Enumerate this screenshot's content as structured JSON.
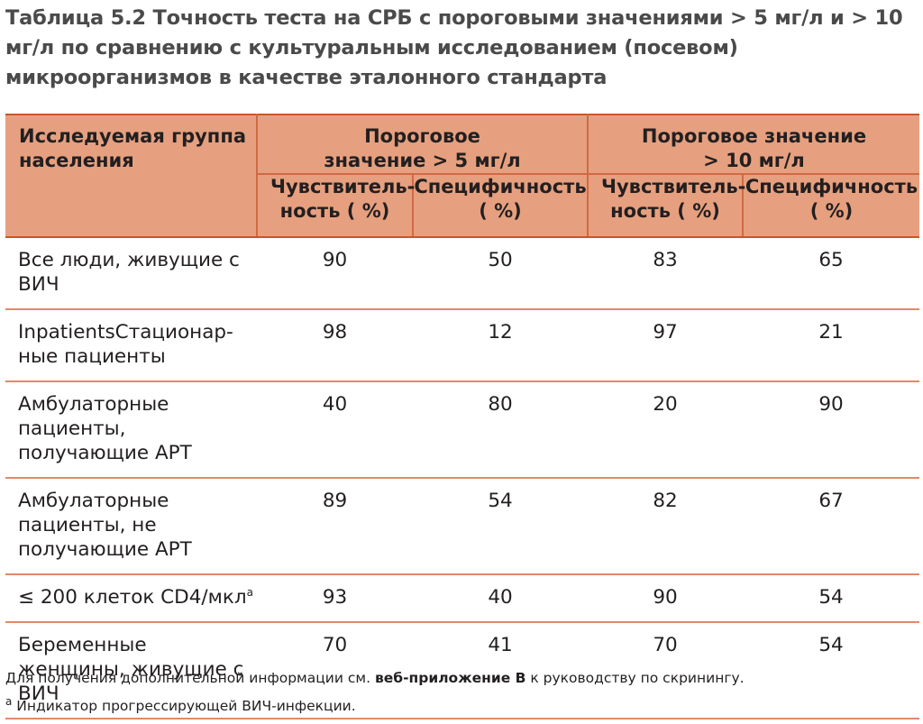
{
  "title": "Таблица 5.2 Точность теста на СРБ с пороговыми значениями > 5 мг/л и > 10 мг/л по сравнению с культуральным исследованием (посевом) микроорганизмов в качестве эталонного стандарта",
  "table": {
    "header": {
      "population": "Исследуемая группа населения",
      "group1": "Пороговое значение > 5 мг/л",
      "group2": "Пороговое значение > 10 мг/л",
      "sens": "Чувствитель-ность ( %)",
      "spec": "Специфичность ( %)"
    },
    "rows": [
      {
        "label": "Все люди, живущие с ВИЧ",
        "sup": "",
        "values": [
          "90",
          "50",
          "83",
          "65"
        ]
      },
      {
        "label": "InpatientsСтационар-ные пациенты",
        "sup": "",
        "values": [
          "98",
          "12",
          "97",
          "21"
        ]
      },
      {
        "label": "Амбулаторные пациенты, получающие АРТ",
        "sup": "",
        "values": [
          "40",
          "80",
          "20",
          "90"
        ]
      },
      {
        "label": "Амбулаторные пациенты, не получающие АРТ",
        "sup": "",
        "values": [
          "89",
          "54",
          "82",
          "67"
        ]
      },
      {
        "label": "≤ 200 клеток CD4/мкл",
        "sup": "a",
        "values": [
          "93",
          "40",
          "90",
          "54"
        ]
      },
      {
        "label": "Беременные женщины, живущие с ВИЧ",
        "sup": "",
        "values": [
          "70",
          "41",
          "70",
          "54"
        ]
      }
    ]
  },
  "footnotes": {
    "line1_before": "Для получения дополнительной информации см.",
    "line1_bold": "веб-приложение B",
    "line1_after": "к руководству по скринингу.",
    "line2_mark": "a",
    "line2_text": "Индикатор прогрессирующей ВИЧ-инфекции."
  },
  "colors": {
    "header_bg": "#e6a07f",
    "rule": "#c8562a",
    "title": "#4a4a4a"
  }
}
